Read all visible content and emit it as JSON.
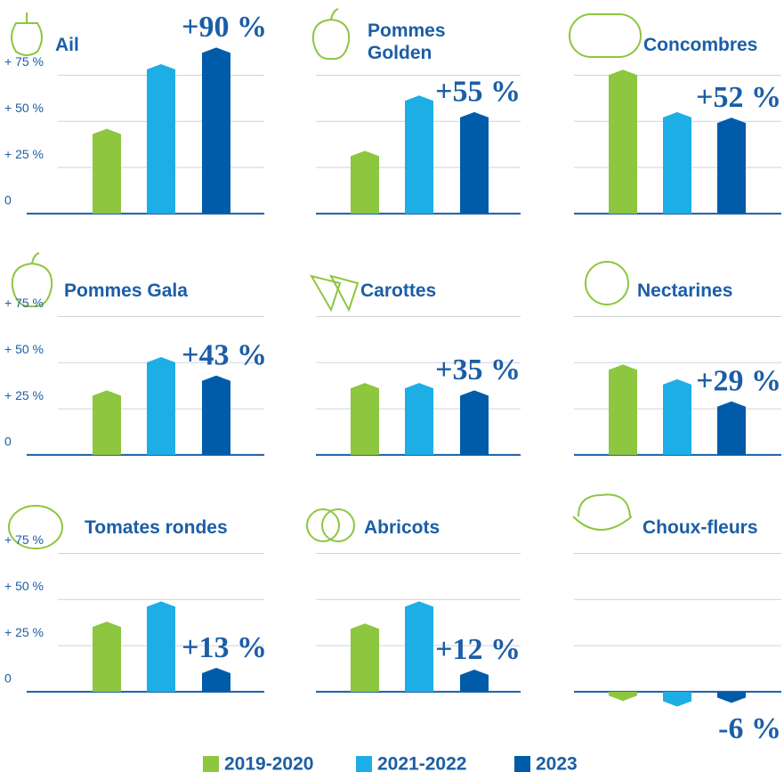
{
  "chart_data": {
    "type": "bar",
    "series": [
      {
        "name": "2019-2020",
        "color": "#8dc63f"
      },
      {
        "name": "2021-2022",
        "color": "#1daee5"
      },
      {
        "name": "2023",
        "color": "#005ca9"
      }
    ],
    "ylim": [
      -15,
      95
    ],
    "yticks": [
      0,
      {
        "value": 25,
        "label": "+ 25 %"
      },
      {
        "value": 50,
        "label": "+ 50 %"
      },
      {
        "value": 75,
        "label": "+ 75 %"
      }
    ],
    "panels": [
      {
        "title": "Ail",
        "values": [
          46,
          81,
          90
        ],
        "value_label": "+90 %"
      },
      {
        "title": "Pommes Golden",
        "values": [
          34,
          64,
          55
        ],
        "value_label": "+55 %"
      },
      {
        "title": "Concombres",
        "values": [
          78,
          55,
          52
        ],
        "value_label": "+52 %"
      },
      {
        "title": "Pommes Gala",
        "values": [
          35,
          53,
          43
        ],
        "value_label": "+43 %"
      },
      {
        "title": "Carottes",
        "values": [
          39,
          39,
          35
        ],
        "value_label": "+35 %"
      },
      {
        "title": "Nectarines",
        "values": [
          49,
          41,
          29
        ],
        "value_label": "+29 %"
      },
      {
        "title": "Tomates rondes",
        "values": [
          38,
          49,
          13
        ],
        "value_label": "+13 %"
      },
      {
        "title": "Abricots",
        "values": [
          37,
          49,
          12
        ],
        "value_label": "+12 %"
      },
      {
        "title": "Choux-fleurs",
        "values": [
          -5,
          -8,
          -6
        ],
        "value_label": "-6 %"
      }
    ]
  }
}
